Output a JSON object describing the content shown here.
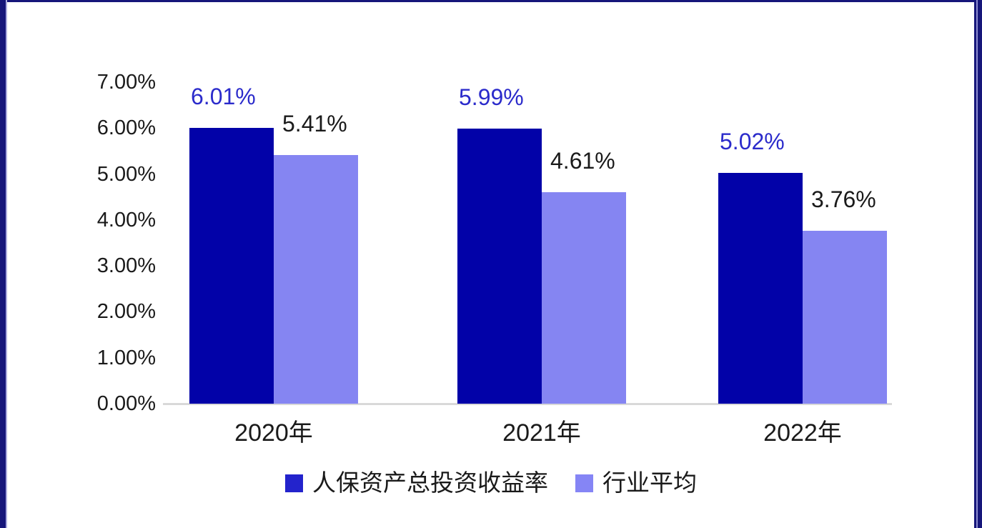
{
  "chart_data": {
    "type": "bar",
    "categories": [
      "2020年",
      "2021年",
      "2022年"
    ],
    "series": [
      {
        "name": "人保资产总投资收益率",
        "values": [
          6.01,
          5.99,
          5.02
        ],
        "labels": [
          "6.01%",
          "5.99%",
          "5.02%"
        ],
        "color": "#0202a8",
        "label_color": "#2b2bcb"
      },
      {
        "name": "行业平均",
        "values": [
          5.41,
          4.61,
          3.76
        ],
        "labels": [
          "5.41%",
          "4.61%",
          "3.76%"
        ],
        "color": "#8585f2",
        "label_color": "#1a1a1a"
      }
    ],
    "y_axis": {
      "ticks": [
        "0.00%",
        "1.00%",
        "2.00%",
        "3.00%",
        "4.00%",
        "5.00%",
        "6.00%",
        "7.00%"
      ],
      "tick_values": [
        0,
        1,
        2,
        3,
        4,
        5,
        6,
        7
      ],
      "min": 0,
      "max": 7
    },
    "legend": [
      {
        "label": "人保资产总投资收益率",
        "color": "#2323cc"
      },
      {
        "label": "行业平均",
        "color": "#8585f5"
      }
    ],
    "grid": false,
    "legend_position": "bottom"
  },
  "colors": {
    "frame": "#16167a",
    "frame_accent_left": "#ababde",
    "frame_accent_right": "#8f8fd0",
    "axis_line": "#d9d9d9",
    "text": "#1a1a1a"
  }
}
